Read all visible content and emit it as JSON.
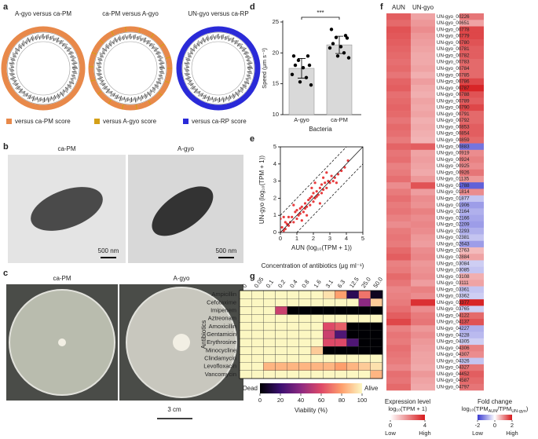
{
  "panel_labels": [
    "a",
    "b",
    "c",
    "d",
    "e",
    "f",
    "g"
  ],
  "panel_a": {
    "titles": [
      "A-gyo versus ca-PM",
      "ca-PM versus A-gyo",
      "UN-gyo versus ca-RP"
    ],
    "legend": [
      {
        "label": "versus ca-PM score",
        "color": "#e8894a"
      },
      {
        "label": "versus A-gyo score",
        "color": "#d4a017"
      },
      {
        "label": "versus ca-RP score",
        "color": "#2a2ad8"
      }
    ]
  },
  "panel_b": {
    "labels": [
      "ca-PM",
      "A-gyo"
    ],
    "scale_bars": [
      "500 nm",
      "500 nm"
    ]
  },
  "panel_c": {
    "labels": [
      "ca-PM",
      "A-gyo"
    ],
    "scale_bar": "3 cm"
  },
  "chart_data": [
    {
      "type": "bar",
      "xlabel": "Bacteria",
      "ylabel": "Speed (μm s⁻¹)",
      "annotation": "***",
      "categories": [
        "A-gyo",
        "ca-PM"
      ],
      "values": [
        17.5,
        21.3
      ],
      "errors": [
        1.6,
        1.4
      ],
      "points": [
        [
          19.5,
          19.5,
          18.8,
          18,
          18,
          17.6,
          16.5,
          16,
          15.3,
          14.8
        ],
        [
          23.8,
          22.8,
          22.5,
          22.4,
          21.5,
          21,
          20.8,
          20,
          19.5,
          19.2
        ]
      ],
      "color": "#d9d9d9",
      "ylim": [
        10,
        25
      ],
      "yticks": [
        10,
        15,
        20,
        25
      ]
    },
    {
      "type": "scatter",
      "xlabel": "AUN (log₁₀(TPM + 1))",
      "ylabel": "UN-gyo (log₁₀(TPM + 1))",
      "color": "#e41a1c",
      "x": [
        0.1,
        0.2,
        0.3,
        0.3,
        0.4,
        0.5,
        0.5,
        0.6,
        0.7,
        0.8,
        0.9,
        1.0,
        1.0,
        1.1,
        1.2,
        1.2,
        1.3,
        1.4,
        1.5,
        1.5,
        1.6,
        1.7,
        1.8,
        1.8,
        1.9,
        2.0,
        2.0,
        2.1,
        2.2,
        2.2,
        2.3,
        2.4,
        2.5,
        2.5,
        2.6,
        2.7,
        2.8,
        2.9,
        3.0,
        3.1,
        3.2,
        3.3,
        3.5,
        3.7,
        3.9,
        4.1,
        0.2,
        0.8,
        1.3,
        1.9,
        2.4,
        2.6,
        3.4,
        0.0,
        0.0,
        1.6,
        2.1,
        2.8
      ],
      "y": [
        0.3,
        0.1,
        0.6,
        0.2,
        0.5,
        0.4,
        0.9,
        0.6,
        0.9,
        0.6,
        1.2,
        0.8,
        1.3,
        1.0,
        1.4,
        1.1,
        1.5,
        1.2,
        1.7,
        1.4,
        1.5,
        1.9,
        1.6,
        2.0,
        2.1,
        1.8,
        2.3,
        2.0,
        2.4,
        2.1,
        2.2,
        2.6,
        2.3,
        2.8,
        2.5,
        2.9,
        2.6,
        3.0,
        2.9,
        3.3,
        3.0,
        3.2,
        3.4,
        3.6,
        3.8,
        4.2,
        0.9,
        1.6,
        0.7,
        2.6,
        1.7,
        3.2,
        2.9,
        0.8,
        0.0,
        1.0,
        2.9,
        3.5
      ],
      "reference_lines": [
        {
          "offset": 0,
          "dash": false
        },
        {
          "offset": 1,
          "dash": true
        },
        {
          "offset": -1,
          "dash": true
        }
      ],
      "xlim": [
        0,
        5
      ],
      "ylim": [
        0,
        5
      ],
      "xticks": [
        0,
        1,
        2,
        3,
        4,
        5
      ],
      "yticks": [
        0,
        1,
        2,
        3,
        4,
        5
      ]
    },
    {
      "type": "heatmap",
      "rows": [
        "UN-gyo_00226",
        "UN-gyo_00651",
        "UN-gyo_00778",
        "UN-gyo_00779",
        "UN-gyo_00780",
        "UN-gyo_00781",
        "UN-gyo_00782",
        "UN-gyo_00783",
        "UN-gyo_00784",
        "UN-gyo_00785",
        "UN-gyo_00786",
        "UN-gyo_00787",
        "UN-gyo_00788",
        "UN-gyo_00789",
        "UN-gyo_00790",
        "UN-gyo_00791",
        "UN-gyo_00792",
        "UN-gyo_00853",
        "UN-gyo_00854",
        "UN-gyo_00859",
        "UN-gyo_00883",
        "UN-gyo_00919",
        "UN-gyo_00924",
        "UN-gyo_00925",
        "UN-gyo_00926",
        "UN-gyo_01135",
        "UN-gyo_01788",
        "UN-gyo_01814",
        "UN-gyo_01877",
        "UN-gyo_01906",
        "UN-gyo_02164",
        "UN-gyo_02166",
        "UN-gyo_02209",
        "UN-gyo_02293",
        "UN-gyo_02381",
        "UN-gyo_02643",
        "UN-gyo_02763",
        "UN-gyo_02884",
        "UN-gyo_03084",
        "UN-gyo_03085",
        "UN-gyo_03108",
        "UN-gyo_03111",
        "UN-gyo_03361",
        "UN-gyo_03362",
        "UN-gyo_03377",
        "UN-gyo_03765",
        "UN-gyo_04122",
        "UN-gyo_04137",
        "UN-gyo_04227",
        "UN-gyo_04228",
        "UN-gyo_04305",
        "UN-gyo_04306",
        "UN-gyo_04307",
        "UN-gyo_04326",
        "UN-gyo_04327",
        "UN-gyo_04452",
        "UN-gyo_04587",
        "UN-gyo_04797"
      ],
      "series": [
        {
          "name": "AUN",
          "values": [
            2.8,
            2.6,
            3.0,
            2.9,
            2.8,
            2.7,
            2.6,
            2.5,
            2.6,
            2.4,
            2.7,
            2.8,
            2.5,
            2.6,
            2.7,
            2.6,
            2.4,
            2.6,
            2.5,
            2.3,
            2.7,
            2.4,
            2.5,
            2.2,
            2.3,
            2.5,
            2.0,
            2.3,
            2.5,
            2.3,
            2.4,
            2.2,
            2.0,
            2.3,
            2.4,
            2.3,
            2.6,
            2.8,
            2.2,
            2.3,
            2.6,
            2.4,
            2.1,
            2.2,
            2.3,
            2.5,
            2.8,
            3.2,
            2.2,
            2.4,
            2.3,
            2.5,
            2.4,
            2.3,
            2.1,
            2.5,
            2.4,
            2.6
          ]
        },
        {
          "name": "UN-gyo",
          "values": [
            1.6,
            1.8,
            2.0,
            1.8,
            1.7,
            1.6,
            1.5,
            1.5,
            1.6,
            1.4,
            1.7,
            1.5,
            1.4,
            1.6,
            1.5,
            1.6,
            1.4,
            1.5,
            1.4,
            1.3,
            2.8,
            1.6,
            1.7,
            1.6,
            1.5,
            1.8,
            3.0,
            1.7,
            2.0,
            1.9,
            2.2,
            2.0,
            2.1,
            2.0,
            1.8,
            1.7,
            2.0,
            2.1,
            1.8,
            1.9,
            2.0,
            1.7,
            2.2,
            2.0,
            3.6,
            2.0,
            2.3,
            2.4,
            1.8,
            2.0,
            1.8,
            1.7,
            1.6,
            1.6,
            1.5,
            1.8,
            1.6,
            1.5
          ]
        }
      ],
      "fold_change": [
        1.2,
        0.8,
        1.6,
        1.6,
        1.5,
        1.4,
        1.4,
        1.3,
        1.3,
        1.3,
        1.6,
        1.9,
        1.5,
        1.4,
        1.6,
        1.3,
        1.3,
        1.4,
        1.4,
        1.3,
        -1.4,
        1.0,
        1.1,
        1.0,
        1.2,
        0.9,
        -1.6,
        1.0,
        -0.6,
        -1.0,
        -0.8,
        -0.9,
        -1.0,
        -0.8,
        -0.6,
        -1.0,
        0.6,
        0.8,
        -0.5,
        -0.6,
        0.7,
        0.8,
        -0.6,
        -0.5,
        1.9,
        -0.5,
        1.3,
        1.5,
        -0.8,
        -0.7,
        -0.5,
        1.1,
        1.0,
        -0.6,
        1.2,
        1.4,
        1.3,
        1.2
      ],
      "colorbars": [
        {
          "title": "Expression level",
          "label_parts": [
            {
              "text": "log₁₀(TPM + 1)",
              "sub": false
            }
          ],
          "lim": [
            0,
            4
          ],
          "ticks": [
            0,
            4
          ],
          "low": "Low",
          "high": "High",
          "colors": [
            "#ffffff",
            "#d7191c"
          ]
        },
        {
          "title": "Fold change",
          "label_parts": [
            {
              "text": "log₁₀(TPM",
              "sub": false
            },
            {
              "text": "AUN",
              "sub": true
            },
            {
              "text": "/TPM",
              "sub": false
            },
            {
              "text": "UN-gyo",
              "sub": true
            },
            {
              "text": ")",
              "sub": false
            }
          ],
          "lim": [
            -2,
            2
          ],
          "ticks": [
            -2,
            0,
            2
          ],
          "low": "Low",
          "high": "High",
          "colors": [
            "#3a3ad0",
            "#ffffff",
            "#d6191c"
          ]
        }
      ]
    },
    {
      "type": "heatmap",
      "xlabel": "Concentration of antibiotics (μg ml⁻¹)",
      "ylabel": "Antibiotics",
      "columns": [
        "0",
        "0.05",
        "0.1",
        "0.2",
        "0.4",
        "0.8",
        "1.6",
        "3.1",
        "6.3",
        "12.5",
        "25.0",
        "50.0"
      ],
      "rows": [
        "Ampicillin",
        "Cefotaxime",
        "Imipenem",
        "Aztreonam",
        "Amoxicillin",
        "Gentamicin",
        "Erythrosine",
        "Minocycline",
        "Clindamycin",
        "Levofloxacin",
        "Vancomycin"
      ],
      "values": [
        [
          100,
          100,
          100,
          100,
          100,
          100,
          100,
          95,
          80,
          15,
          70,
          5
        ],
        [
          100,
          100,
          100,
          100,
          100,
          100,
          100,
          100,
          100,
          100,
          40,
          90
        ],
        [
          100,
          100,
          100,
          55,
          0,
          0,
          0,
          0,
          0,
          0,
          0,
          0
        ],
        [
          100,
          100,
          100,
          100,
          100,
          100,
          100,
          100,
          100,
          100,
          100,
          100
        ],
        [
          100,
          100,
          100,
          100,
          100,
          100,
          100,
          60,
          65,
          0,
          0,
          0
        ],
        [
          100,
          100,
          100,
          100,
          100,
          100,
          100,
          55,
          25,
          0,
          0,
          0
        ],
        [
          100,
          100,
          100,
          100,
          100,
          100,
          100,
          60,
          60,
          25,
          0,
          0
        ],
        [
          100,
          100,
          100,
          100,
          100,
          100,
          90,
          0,
          0,
          0,
          0,
          0
        ],
        [
          100,
          100,
          100,
          100,
          100,
          100,
          100,
          100,
          100,
          100,
          100,
          100
        ],
        [
          100,
          100,
          85,
          85,
          85,
          85,
          85,
          85,
          80,
          85,
          90,
          95
        ],
        [
          100,
          100,
          100,
          100,
          100,
          100,
          100,
          100,
          100,
          100,
          100,
          85
        ]
      ],
      "colorbar": {
        "label": "Viability (%)",
        "low": "Dead",
        "high": "Alive",
        "lim": [
          0,
          100
        ],
        "ticks": [
          0,
          20,
          40,
          60,
          80,
          100
        ],
        "colors": [
          "#000004",
          "#3b0f70",
          "#8c2981",
          "#de4968",
          "#fe9f6d",
          "#fcf7c2"
        ]
      }
    }
  ]
}
